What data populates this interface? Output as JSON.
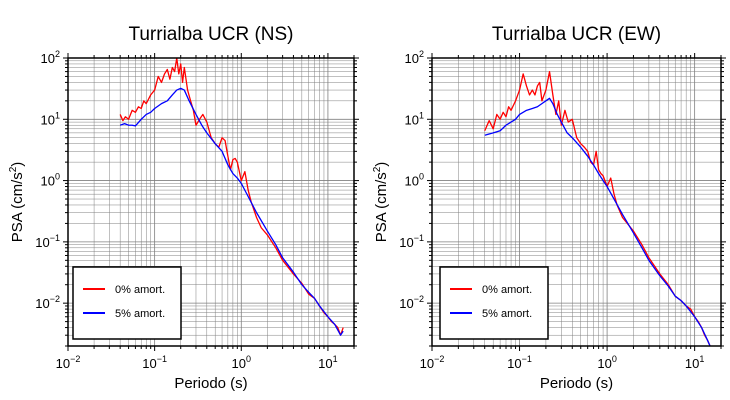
{
  "chart_data": [
    {
      "type": "line",
      "title": "Turrialba UCR (NS)",
      "xlabel": "Periodo (s)",
      "ylabel": "PSA (cm/s²)",
      "xscale": "log",
      "yscale": "log",
      "xlim": [
        0.01,
        20
      ],
      "ylim": [
        0.002,
        100
      ],
      "grid": true,
      "legend_position": "bottom-left",
      "x_ticks": [
        {
          "base": "10",
          "exp": "−2"
        },
        {
          "base": "10",
          "exp": "−1"
        },
        {
          "base": "10",
          "exp": "0"
        },
        {
          "base": "10",
          "exp": "1"
        }
      ],
      "y_ticks": [
        {
          "base": "10",
          "exp": "−2"
        },
        {
          "base": "10",
          "exp": "−1"
        },
        {
          "base": "10",
          "exp": "0"
        },
        {
          "base": "10",
          "exp": "1"
        },
        {
          "base": "10",
          "exp": "2"
        }
      ],
      "series": [
        {
          "name": "0% amort.",
          "color": "#ff0000",
          "points": [
            [
              0.04,
              12
            ],
            [
              0.043,
              9.5
            ],
            [
              0.046,
              11
            ],
            [
              0.05,
              10
            ],
            [
              0.055,
              14
            ],
            [
              0.06,
              13
            ],
            [
              0.065,
              16
            ],
            [
              0.07,
              15
            ],
            [
              0.075,
              20
            ],
            [
              0.08,
              18
            ],
            [
              0.09,
              25
            ],
            [
              0.1,
              30
            ],
            [
              0.11,
              50
            ],
            [
              0.12,
              40
            ],
            [
              0.13,
              55
            ],
            [
              0.14,
              65
            ],
            [
              0.15,
              45
            ],
            [
              0.16,
              70
            ],
            [
              0.17,
              60
            ],
            [
              0.18,
              100
            ],
            [
              0.19,
              55
            ],
            [
              0.2,
              80
            ],
            [
              0.21,
              40
            ],
            [
              0.22,
              70
            ],
            [
              0.24,
              30
            ],
            [
              0.26,
              20
            ],
            [
              0.28,
              14
            ],
            [
              0.3,
              8
            ],
            [
              0.33,
              10
            ],
            [
              0.36,
              12
            ],
            [
              0.4,
              9
            ],
            [
              0.45,
              5
            ],
            [
              0.5,
              4
            ],
            [
              0.55,
              3.5
            ],
            [
              0.6,
              5
            ],
            [
              0.65,
              4.5
            ],
            [
              0.7,
              2.5
            ],
            [
              0.75,
              1.5
            ],
            [
              0.8,
              2.2
            ],
            [
              0.85,
              2.3
            ],
            [
              0.9,
              2
            ],
            [
              1.0,
              1.0
            ],
            [
              1.1,
              1.4
            ],
            [
              1.2,
              0.7
            ],
            [
              1.3,
              0.45
            ],
            [
              1.5,
              0.25
            ],
            [
              1.7,
              0.17
            ],
            [
              2,
              0.13
            ],
            [
              2.5,
              0.08
            ],
            [
              3,
              0.05
            ],
            [
              4,
              0.03
            ],
            [
              5,
              0.021
            ],
            [
              6,
              0.014
            ],
            [
              7,
              0.012
            ],
            [
              8,
              0.009
            ],
            [
              9,
              0.007
            ],
            [
              10,
              0.006
            ],
            [
              11,
              0.005
            ],
            [
              12,
              0.0045
            ],
            [
              13,
              0.004
            ],
            [
              14,
              0.003
            ],
            [
              15,
              0.004
            ]
          ]
        },
        {
          "name": "5% amort.",
          "color": "#0000ff",
          "points": [
            [
              0.04,
              8
            ],
            [
              0.045,
              8.5
            ],
            [
              0.05,
              8
            ],
            [
              0.055,
              8
            ],
            [
              0.06,
              7.8
            ],
            [
              0.07,
              10
            ],
            [
              0.08,
              12
            ],
            [
              0.09,
              13
            ],
            [
              0.1,
              15
            ],
            [
              0.12,
              18
            ],
            [
              0.14,
              20
            ],
            [
              0.16,
              25
            ],
            [
              0.18,
              30
            ],
            [
              0.2,
              32
            ],
            [
              0.22,
              30
            ],
            [
              0.25,
              20
            ],
            [
              0.3,
              12
            ],
            [
              0.35,
              8
            ],
            [
              0.4,
              6
            ],
            [
              0.5,
              4
            ],
            [
              0.6,
              3
            ],
            [
              0.7,
              1.8
            ],
            [
              0.8,
              1.3
            ],
            [
              0.9,
              1.1
            ],
            [
              1.0,
              0.9
            ],
            [
              1.2,
              0.55
            ],
            [
              1.5,
              0.3
            ],
            [
              2,
              0.15
            ],
            [
              2.5,
              0.09
            ],
            [
              3,
              0.055
            ],
            [
              4,
              0.032
            ],
            [
              5,
              0.02
            ],
            [
              6,
              0.015
            ],
            [
              7,
              0.012
            ],
            [
              8,
              0.009
            ],
            [
              10,
              0.006
            ],
            [
              12,
              0.0045
            ],
            [
              14,
              0.003
            ],
            [
              15,
              0.0035
            ]
          ]
        }
      ]
    },
    {
      "type": "line",
      "title": "Turrialba UCR (EW)",
      "xlabel": "Periodo (s)",
      "ylabel": "PSA (cm/s²)",
      "xscale": "log",
      "yscale": "log",
      "xlim": [
        0.01,
        20
      ],
      "ylim": [
        0.002,
        100
      ],
      "grid": true,
      "legend_position": "bottom-left",
      "x_ticks": [
        {
          "base": "10",
          "exp": "−2"
        },
        {
          "base": "10",
          "exp": "−1"
        },
        {
          "base": "10",
          "exp": "0"
        },
        {
          "base": "10",
          "exp": "1"
        }
      ],
      "y_ticks": [
        {
          "base": "10",
          "exp": "−2"
        },
        {
          "base": "10",
          "exp": "−1"
        },
        {
          "base": "10",
          "exp": "0"
        },
        {
          "base": "10",
          "exp": "1"
        },
        {
          "base": "10",
          "exp": "2"
        }
      ],
      "series": [
        {
          "name": "0% amort.",
          "color": "#ff0000",
          "points": [
            [
              0.04,
              6.5
            ],
            [
              0.045,
              9.5
            ],
            [
              0.05,
              7
            ],
            [
              0.055,
              12
            ],
            [
              0.06,
              10
            ],
            [
              0.065,
              13
            ],
            [
              0.07,
              11
            ],
            [
              0.075,
              16
            ],
            [
              0.08,
              14
            ],
            [
              0.09,
              20
            ],
            [
              0.1,
              30
            ],
            [
              0.11,
              55
            ],
            [
              0.12,
              35
            ],
            [
              0.13,
              25
            ],
            [
              0.14,
              30
            ],
            [
              0.15,
              25
            ],
            [
              0.16,
              35
            ],
            [
              0.17,
              40
            ],
            [
              0.18,
              20
            ],
            [
              0.2,
              30
            ],
            [
              0.22,
              60
            ],
            [
              0.24,
              25
            ],
            [
              0.26,
              12
            ],
            [
              0.28,
              20
            ],
            [
              0.3,
              8
            ],
            [
              0.33,
              14
            ],
            [
              0.36,
              9
            ],
            [
              0.4,
              10
            ],
            [
              0.45,
              5
            ],
            [
              0.5,
              4
            ],
            [
              0.55,
              3.5
            ],
            [
              0.6,
              3
            ],
            [
              0.65,
              2
            ],
            [
              0.7,
              1.8
            ],
            [
              0.75,
              3
            ],
            [
              0.8,
              1.5
            ],
            [
              0.85,
              1.3
            ],
            [
              0.9,
              1.2
            ],
            [
              1.0,
              0.8
            ],
            [
              1.1,
              1.1
            ],
            [
              1.2,
              0.6
            ],
            [
              1.3,
              0.4
            ],
            [
              1.5,
              0.25
            ],
            [
              2,
              0.15
            ],
            [
              2.5,
              0.09
            ],
            [
              3,
              0.055
            ],
            [
              4,
              0.03
            ],
            [
              5,
              0.02
            ],
            [
              6,
              0.013
            ],
            [
              7,
              0.011
            ],
            [
              8,
              0.009
            ],
            [
              9,
              0.008
            ],
            [
              10,
              0.006
            ],
            [
              11,
              0.005
            ],
            [
              12,
              0.004
            ],
            [
              13,
              0.003
            ],
            [
              14,
              0.0025
            ],
            [
              15,
              0.002
            ]
          ]
        },
        {
          "name": "5% amort.",
          "color": "#0000ff",
          "points": [
            [
              0.04,
              5.5
            ],
            [
              0.05,
              6
            ],
            [
              0.06,
              6.5
            ],
            [
              0.07,
              8
            ],
            [
              0.08,
              9
            ],
            [
              0.09,
              10
            ],
            [
              0.1,
              12
            ],
            [
              0.12,
              14
            ],
            [
              0.14,
              15
            ],
            [
              0.16,
              16
            ],
            [
              0.18,
              18
            ],
            [
              0.2,
              20
            ],
            [
              0.22,
              22
            ],
            [
              0.24,
              18
            ],
            [
              0.27,
              12
            ],
            [
              0.3,
              9
            ],
            [
              0.35,
              6
            ],
            [
              0.4,
              5
            ],
            [
              0.5,
              3.5
            ],
            [
              0.6,
              2.5
            ],
            [
              0.7,
              1.8
            ],
            [
              0.8,
              1.3
            ],
            [
              0.9,
              1.0
            ],
            [
              1.0,
              0.8
            ],
            [
              1.2,
              0.5
            ],
            [
              1.5,
              0.28
            ],
            [
              2,
              0.14
            ],
            [
              2.5,
              0.08
            ],
            [
              3,
              0.05
            ],
            [
              4,
              0.028
            ],
            [
              5,
              0.019
            ],
            [
              6,
              0.013
            ],
            [
              7,
              0.011
            ],
            [
              8,
              0.009
            ],
            [
              10,
              0.006
            ],
            [
              12,
              0.004
            ],
            [
              14,
              0.0025
            ],
            [
              15,
              0.002
            ]
          ]
        }
      ]
    }
  ]
}
